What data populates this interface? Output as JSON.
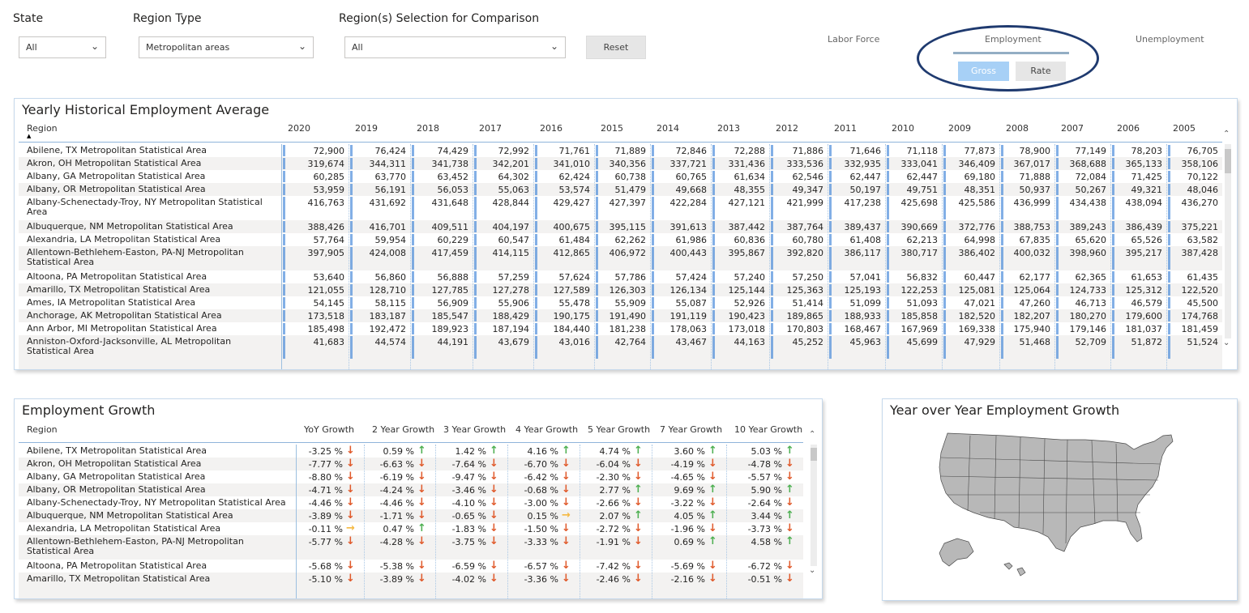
{
  "slicers": {
    "state": {
      "label": "State",
      "value": "All"
    },
    "region_type": {
      "label": "Region Type",
      "value": "Metropolitan areas"
    },
    "region_selection": {
      "label": "Region(s) Selection for Comparison",
      "value": "All"
    },
    "reset_label": "Reset"
  },
  "metrics": {
    "labor_force": "Labor Force",
    "employment": "Employment",
    "unemployment": "Unemployment",
    "gross": "Gross",
    "rate": "Rate"
  },
  "yearly": {
    "title": "Yearly Historical Employment Average",
    "region_header": "Region",
    "years": [
      "2020",
      "2019",
      "2018",
      "2017",
      "2016",
      "2015",
      "2014",
      "2013",
      "2012",
      "2011",
      "2010",
      "2009",
      "2008",
      "2007",
      "2006",
      "2005"
    ],
    "rows": [
      {
        "region": "Abilene, TX Metropolitan Statistical Area",
        "values": [
          "72,900",
          "76,424",
          "74,429",
          "72,992",
          "71,761",
          "71,889",
          "72,846",
          "72,288",
          "71,886",
          "71,646",
          "71,118",
          "77,873",
          "78,900",
          "77,149",
          "78,203",
          "76,705"
        ]
      },
      {
        "region": "Akron, OH Metropolitan Statistical Area",
        "values": [
          "319,674",
          "344,311",
          "341,738",
          "342,201",
          "341,010",
          "340,356",
          "337,721",
          "331,436",
          "333,536",
          "332,935",
          "333,041",
          "346,409",
          "367,017",
          "368,688",
          "365,133",
          "358,106"
        ]
      },
      {
        "region": "Albany, GA Metropolitan Statistical Area",
        "values": [
          "60,285",
          "63,770",
          "63,452",
          "64,302",
          "62,424",
          "60,738",
          "60,765",
          "61,634",
          "62,546",
          "62,447",
          "62,447",
          "69,180",
          "71,888",
          "72,084",
          "71,425",
          "70,122"
        ]
      },
      {
        "region": "Albany, OR Metropolitan Statistical Area",
        "values": [
          "53,959",
          "56,191",
          "56,053",
          "55,063",
          "53,574",
          "51,479",
          "49,668",
          "48,355",
          "49,347",
          "50,197",
          "49,751",
          "48,351",
          "50,937",
          "50,267",
          "49,321",
          "48,046"
        ]
      },
      {
        "region": "Albany-Schenectady-Troy, NY Metropolitan Statistical Area",
        "values": [
          "416,763",
          "431,692",
          "431,648",
          "428,844",
          "429,427",
          "427,397",
          "422,284",
          "427,121",
          "421,999",
          "417,238",
          "425,698",
          "425,586",
          "436,999",
          "434,438",
          "438,094",
          "436,270"
        ]
      },
      {
        "region": "Albuquerque, NM Metropolitan Statistical Area",
        "values": [
          "388,426",
          "416,701",
          "409,511",
          "404,197",
          "400,675",
          "395,115",
          "391,613",
          "387,442",
          "387,764",
          "389,437",
          "390,669",
          "372,776",
          "388,753",
          "389,243",
          "386,439",
          "375,221"
        ]
      },
      {
        "region": "Alexandria, LA Metropolitan Statistical Area",
        "values": [
          "57,764",
          "59,954",
          "60,229",
          "60,547",
          "61,484",
          "62,262",
          "61,986",
          "60,836",
          "60,780",
          "61,408",
          "62,213",
          "64,998",
          "67,835",
          "65,620",
          "65,526",
          "63,582"
        ]
      },
      {
        "region": "Allentown-Bethlehem-Easton, PA-NJ Metropolitan Statistical Area",
        "values": [
          "397,905",
          "424,008",
          "417,459",
          "414,115",
          "412,865",
          "406,972",
          "400,443",
          "395,867",
          "392,820",
          "386,117",
          "380,717",
          "386,402",
          "400,032",
          "398,960",
          "395,217",
          "387,428"
        ]
      },
      {
        "region": "Altoona, PA Metropolitan Statistical Area",
        "values": [
          "53,640",
          "56,860",
          "56,888",
          "57,259",
          "57,624",
          "57,786",
          "57,424",
          "57,240",
          "57,250",
          "57,041",
          "56,832",
          "60,447",
          "62,177",
          "62,365",
          "61,653",
          "61,435"
        ]
      },
      {
        "region": "Amarillo, TX Metropolitan Statistical Area",
        "values": [
          "121,055",
          "128,710",
          "127,785",
          "127,278",
          "127,589",
          "126,303",
          "126,134",
          "125,144",
          "125,363",
          "125,193",
          "122,253",
          "125,081",
          "125,064",
          "124,733",
          "125,312",
          "122,520"
        ]
      },
      {
        "region": "Ames, IA Metropolitan Statistical Area",
        "values": [
          "54,145",
          "58,115",
          "56,909",
          "55,906",
          "55,478",
          "55,909",
          "55,087",
          "52,926",
          "51,414",
          "51,099",
          "51,093",
          "47,021",
          "47,260",
          "46,713",
          "46,579",
          "45,500"
        ]
      },
      {
        "region": "Anchorage, AK Metropolitan Statistical Area",
        "values": [
          "173,518",
          "183,187",
          "185,547",
          "188,429",
          "190,175",
          "191,490",
          "191,119",
          "190,423",
          "189,865",
          "188,933",
          "185,858",
          "182,520",
          "182,207",
          "180,270",
          "179,600",
          "174,768"
        ]
      },
      {
        "region": "Ann Arbor, MI Metropolitan Statistical Area",
        "values": [
          "185,498",
          "192,472",
          "189,923",
          "187,194",
          "184,440",
          "181,238",
          "178,063",
          "173,018",
          "170,803",
          "168,467",
          "167,969",
          "169,338",
          "175,940",
          "179,146",
          "181,037",
          "181,459"
        ]
      },
      {
        "region": "Anniston-Oxford-Jacksonville, AL Metropolitan Statistical Area",
        "values": [
          "41,683",
          "44,574",
          "44,191",
          "43,679",
          "43,016",
          "42,764",
          "43,467",
          "44,163",
          "45,252",
          "45,963",
          "45,699",
          "47,929",
          "51,468",
          "52,709",
          "51,872",
          "51,524"
        ]
      }
    ]
  },
  "growth": {
    "title": "Employment Growth",
    "region_header": "Region",
    "columns": [
      "YoY Growth",
      "2 Year Growth",
      "3 Year Growth",
      "4 Year Growth",
      "5 Year Growth",
      "7 Year Growth",
      "10 Year Growth"
    ],
    "rows": [
      {
        "region": "Abilene, TX Metropolitan Statistical Area",
        "values": [
          "-3.25 %",
          "0.59 %",
          "1.42 %",
          "4.16 %",
          "4.74 %",
          "3.60 %",
          "5.03 %"
        ],
        "dirs": [
          "down",
          "up",
          "up",
          "up",
          "up",
          "up",
          "up"
        ]
      },
      {
        "region": "Akron, OH Metropolitan Statistical Area",
        "values": [
          "-7.77 %",
          "-6.63 %",
          "-7.64 %",
          "-6.70 %",
          "-6.04 %",
          "-4.19 %",
          "-4.78 %"
        ],
        "dirs": [
          "down",
          "down",
          "down",
          "down",
          "down",
          "down",
          "down"
        ]
      },
      {
        "region": "Albany, GA Metropolitan Statistical Area",
        "values": [
          "-8.80 %",
          "-6.19 %",
          "-9.47 %",
          "-6.42 %",
          "-2.30 %",
          "-4.65 %",
          "-5.57 %"
        ],
        "dirs": [
          "down",
          "down",
          "down",
          "down",
          "down",
          "down",
          "down"
        ]
      },
      {
        "region": "Albany, OR Metropolitan Statistical Area",
        "values": [
          "-4.71 %",
          "-4.24 %",
          "-3.46 %",
          "-0.68 %",
          "2.77 %",
          "9.69 %",
          "5.90 %"
        ],
        "dirs": [
          "down",
          "down",
          "down",
          "down",
          "up",
          "up",
          "up"
        ]
      },
      {
        "region": "Albany-Schenectady-Troy, NY Metropolitan Statistical Area",
        "values": [
          "-4.46 %",
          "-4.46 %",
          "-4.10 %",
          "-3.00 %",
          "-2.66 %",
          "-3.22 %",
          "-2.64 %"
        ],
        "dirs": [
          "down",
          "down",
          "down",
          "down",
          "down",
          "down",
          "down"
        ]
      },
      {
        "region": "Albuquerque, NM Metropolitan Statistical Area",
        "values": [
          "-3.89 %",
          "-1.71 %",
          "-0.65 %",
          "0.15 %",
          "2.07 %",
          "4.05 %",
          "3.44 %"
        ],
        "dirs": [
          "down",
          "down",
          "down",
          "flat",
          "up",
          "up",
          "up"
        ]
      },
      {
        "region": "Alexandria, LA Metropolitan Statistical Area",
        "values": [
          "-0.11 %",
          "0.47 %",
          "-1.83 %",
          "-1.50 %",
          "-2.72 %",
          "-1.96 %",
          "-3.73 %"
        ],
        "dirs": [
          "flat",
          "up",
          "down",
          "down",
          "down",
          "down",
          "down"
        ]
      },
      {
        "region": "Allentown-Bethlehem-Easton, PA-NJ Metropolitan Statistical Area",
        "values": [
          "-5.77 %",
          "-4.28 %",
          "-3.75 %",
          "-3.33 %",
          "-1.91 %",
          "0.69 %",
          "4.58 %"
        ],
        "dirs": [
          "down",
          "down",
          "down",
          "down",
          "down",
          "up",
          "up"
        ]
      },
      {
        "region": "Altoona, PA Metropolitan Statistical Area",
        "values": [
          "-5.68 %",
          "-5.38 %",
          "-6.59 %",
          "-6.57 %",
          "-7.42 %",
          "-5.69 %",
          "-6.72 %"
        ],
        "dirs": [
          "down",
          "down",
          "down",
          "down",
          "down",
          "down",
          "down"
        ]
      },
      {
        "region": "Amarillo, TX Metropolitan Statistical Area",
        "values": [
          "-5.10 %",
          "-3.89 %",
          "-4.02 %",
          "-3.36 %",
          "-2.46 %",
          "-2.16 %",
          "-0.51 %"
        ],
        "dirs": [
          "down",
          "down",
          "down",
          "down",
          "down",
          "down",
          "down"
        ]
      }
    ]
  },
  "map": {
    "title": "Year over Year Employment Growth"
  }
}
